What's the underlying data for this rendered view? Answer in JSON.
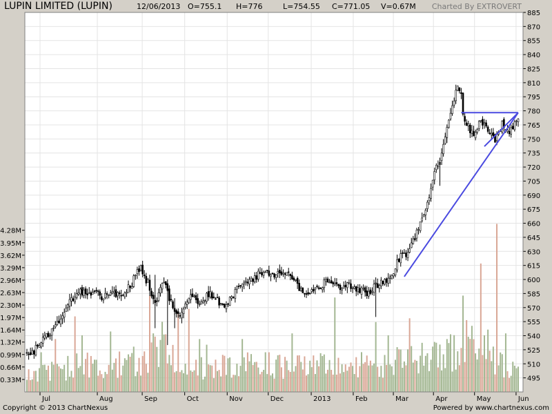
{
  "header": {
    "title": "LUPIN LIMITED (LUPIN)",
    "date": "12/06/2013",
    "open": "O=755.1",
    "high": "H=776",
    "low": "L=754.55",
    "close": "C=771.05",
    "volume": "V=0.67M",
    "credit": "Charted By EXTROVERT"
  },
  "footer": {
    "copyright": "Copyright © 2013 ChartNexus",
    "powered": "Powered by www.chartnexus.com"
  },
  "colors": {
    "background": "#d4d0c8",
    "plot": "#ffffff",
    "grid": "#e4e4e4",
    "candle": "#000000",
    "volume_up": "#a3b792",
    "volume_down": "#d9a695",
    "trendline": "#4a4ae0"
  },
  "chart_data": {
    "type": "candlestick",
    "price_axis": {
      "side": "right",
      "ylim": [
        480,
        885
      ],
      "ticks": [
        "885",
        "870",
        "855",
        "840",
        "825",
        "810",
        "795",
        "780",
        "765",
        "750",
        "735",
        "720",
        "705",
        "690",
        "675",
        "660",
        "645",
        "630",
        "615",
        "600",
        "585",
        "570",
        "555",
        "540",
        "525",
        "510",
        "495"
      ]
    },
    "volume_axis": {
      "side": "left",
      "ylim": [
        0,
        4.75
      ],
      "ticks": [
        {
          "label": "0.33M",
          "value": 0.33
        },
        {
          "label": "0.66M",
          "value": 0.66
        },
        {
          "label": "0.99M",
          "value": 0.99
        },
        {
          "label": "1.32M",
          "value": 1.32
        },
        {
          "label": "1.64M",
          "value": 1.64
        },
        {
          "label": "1.97M",
          "value": 1.97
        },
        {
          "label": "2.30M",
          "value": 2.3
        },
        {
          "label": "2.63M",
          "value": 2.63
        },
        {
          "label": "2.96M",
          "value": 2.96
        },
        {
          "label": "3.29M",
          "value": 3.29
        },
        {
          "label": "3.62M",
          "value": 3.62
        },
        {
          "label": "3.95M",
          "value": 3.95
        },
        {
          "label": "4.28M",
          "value": 4.28
        }
      ]
    },
    "months": [
      {
        "label": "Jul",
        "start": 0
      },
      {
        "label": "Aug",
        "start": 0.12
      },
      {
        "label": "Sep",
        "start": 0.214
      },
      {
        "label": "Oct",
        "start": 0.303
      },
      {
        "label": "Nov",
        "start": 0.392
      },
      {
        "label": "Dec",
        "start": 0.478
      },
      {
        "label": "2013",
        "start": 0.568
      },
      {
        "label": "Feb",
        "start": 0.656
      },
      {
        "label": "Mar",
        "start": 0.74
      },
      {
        "label": "Apr",
        "start": 0.824
      },
      {
        "label": "May",
        "start": 0.91
      },
      {
        "label": "Jun",
        "start": 0.997
      }
    ],
    "close_path": [
      [
        0,
        518
      ],
      [
        3,
        522
      ],
      [
        7,
        530
      ],
      [
        10,
        538
      ],
      [
        14,
        545
      ],
      [
        17,
        552
      ],
      [
        21,
        565
      ],
      [
        25,
        578
      ],
      [
        30,
        588
      ],
      [
        33,
        584
      ],
      [
        36,
        585
      ],
      [
        40,
        586
      ],
      [
        43,
        580
      ],
      [
        47,
        588
      ],
      [
        50,
        582
      ],
      [
        53,
        585
      ],
      [
        56,
        590
      ],
      [
        59,
        596
      ],
      [
        62,
        610
      ],
      [
        64,
        614
      ],
      [
        66,
        604
      ],
      [
        68,
        596
      ],
      [
        70,
        580
      ],
      [
        73,
        576
      ],
      [
        75,
        592
      ],
      [
        77,
        600
      ],
      [
        79,
        586
      ],
      [
        81,
        575
      ],
      [
        83,
        565
      ],
      [
        85,
        560
      ],
      [
        87,
        568
      ],
      [
        89,
        576
      ],
      [
        91,
        582
      ],
      [
        93,
        585
      ],
      [
        95,
        580
      ],
      [
        97,
        574
      ],
      [
        99,
        578
      ],
      [
        101,
        582
      ],
      [
        103,
        585
      ],
      [
        105,
        583
      ],
      [
        107,
        578
      ],
      [
        109,
        574
      ],
      [
        111,
        571
      ],
      [
        113,
        575
      ],
      [
        115,
        582
      ],
      [
        118,
        590
      ],
      [
        121,
        596
      ],
      [
        124,
        598
      ],
      [
        127,
        600
      ],
      [
        130,
        605
      ],
      [
        133,
        608
      ],
      [
        136,
        606
      ],
      [
        139,
        604
      ],
      [
        142,
        606
      ],
      [
        145,
        608
      ],
      [
        148,
        604
      ],
      [
        151,
        596
      ],
      [
        154,
        588
      ],
      [
        156,
        584
      ],
      [
        158,
        588
      ],
      [
        161,
        586
      ],
      [
        164,
        590
      ],
      [
        167,
        596
      ],
      [
        170,
        598
      ],
      [
        173,
        593
      ],
      [
        176,
        590
      ],
      [
        179,
        595
      ],
      [
        182,
        592
      ],
      [
        185,
        590
      ],
      [
        188,
        588
      ],
      [
        191,
        586
      ],
      [
        193,
        588
      ],
      [
        196,
        593
      ],
      [
        199,
        598
      ],
      [
        202,
        596
      ],
      [
        204,
        602
      ],
      [
        206,
        610
      ],
      [
        208,
        618
      ],
      [
        210,
        626
      ],
      [
        212,
        630
      ],
      [
        214,
        626
      ],
      [
        216,
        636
      ],
      [
        218,
        646
      ],
      [
        220,
        656
      ],
      [
        222,
        666
      ],
      [
        224,
        676
      ],
      [
        226,
        690
      ],
      [
        228,
        706
      ],
      [
        230,
        720
      ],
      [
        232,
        728
      ],
      [
        234,
        745
      ],
      [
        236,
        760
      ],
      [
        238,
        775
      ],
      [
        240,
        790
      ],
      [
        242,
        808
      ],
      [
        244,
        800
      ],
      [
        245,
        775
      ],
      [
        247,
        768
      ],
      [
        249,
        760
      ],
      [
        251,
        756
      ],
      [
        253,
        762
      ],
      [
        255,
        770
      ],
      [
        257,
        764
      ],
      [
        259,
        758
      ],
      [
        261,
        752
      ],
      [
        263,
        748
      ],
      [
        265,
        756
      ],
      [
        267,
        768
      ],
      [
        269,
        762
      ],
      [
        271,
        756
      ],
      [
        273,
        762
      ],
      [
        275,
        768
      ],
      [
        276,
        771
      ]
    ],
    "volume_path": [
      [
        0,
        0.45
      ],
      [
        25,
        0.7
      ],
      [
        50,
        0.78
      ],
      [
        68,
        0.95
      ],
      [
        75,
        1.4
      ],
      [
        85,
        0.85
      ],
      [
        100,
        0.72
      ],
      [
        125,
        0.78
      ],
      [
        150,
        0.7
      ],
      [
        175,
        0.74
      ],
      [
        200,
        0.76
      ],
      [
        215,
        0.88
      ],
      [
        230,
        1.0
      ],
      [
        245,
        1.2
      ],
      [
        262,
        0.95
      ],
      [
        276,
        0.5
      ]
    ],
    "volume_spikes": [
      {
        "x": 69,
        "v": 2.55
      },
      {
        "x": 71,
        "v": 1.55
      },
      {
        "x": 77,
        "v": 1.52
      },
      {
        "x": 80,
        "v": 0.98
      },
      {
        "x": 84,
        "v": 0.55
      },
      {
        "x": 85,
        "v": 2.1
      },
      {
        "x": 91,
        "v": 2.2
      },
      {
        "x": 97,
        "v": 1.4
      },
      {
        "x": 101,
        "v": 1.25
      },
      {
        "x": 8,
        "v": 1.05
      },
      {
        "x": 16,
        "v": 1.4
      },
      {
        "x": 27,
        "v": 2.0
      },
      {
        "x": 31,
        "v": 1.5
      },
      {
        "x": 47,
        "v": 1.6
      },
      {
        "x": 121,
        "v": 1.4
      },
      {
        "x": 149,
        "v": 1.55
      },
      {
        "x": 166,
        "v": 0.95
      },
      {
        "x": 173,
        "v": 2.5
      },
      {
        "x": 196,
        "v": 1.85
      },
      {
        "x": 203,
        "v": 1.5
      },
      {
        "x": 215,
        "v": 1.95
      },
      {
        "x": 222,
        "v": 1.3
      },
      {
        "x": 228,
        "v": 1.2
      },
      {
        "x": 236,
        "v": 1.4
      },
      {
        "x": 245,
        "v": 2.55
      },
      {
        "x": 247,
        "v": 1.9
      },
      {
        "x": 250,
        "v": 1.75
      },
      {
        "x": 255,
        "v": 3.4
      },
      {
        "x": 257,
        "v": 1.5
      },
      {
        "x": 259,
        "v": 1.65
      },
      {
        "x": 262,
        "v": 1.2
      },
      {
        "x": 264,
        "v": 4.45
      },
      {
        "x": 267,
        "v": 1.0
      },
      {
        "x": 269,
        "v": 1.55
      },
      {
        "x": 273,
        "v": 0.8
      },
      {
        "x": 276,
        "v": 0.67
      }
    ],
    "volume_down_spikes": [
      69,
      85,
      91,
      16,
      27,
      215,
      247,
      255,
      264
    ],
    "trendlines": [
      {
        "type": "support",
        "from": {
          "t": 212,
          "price": 603
        },
        "to": {
          "t": 276,
          "price": 778
        }
      },
      {
        "type": "resistance",
        "from": {
          "t": 244,
          "price": 778
        },
        "to": {
          "t": 276,
          "price": 778
        }
      },
      {
        "type": "support",
        "from": {
          "t": 257,
          "price": 742
        },
        "to": {
          "t": 276,
          "price": 778
        }
      }
    ]
  }
}
